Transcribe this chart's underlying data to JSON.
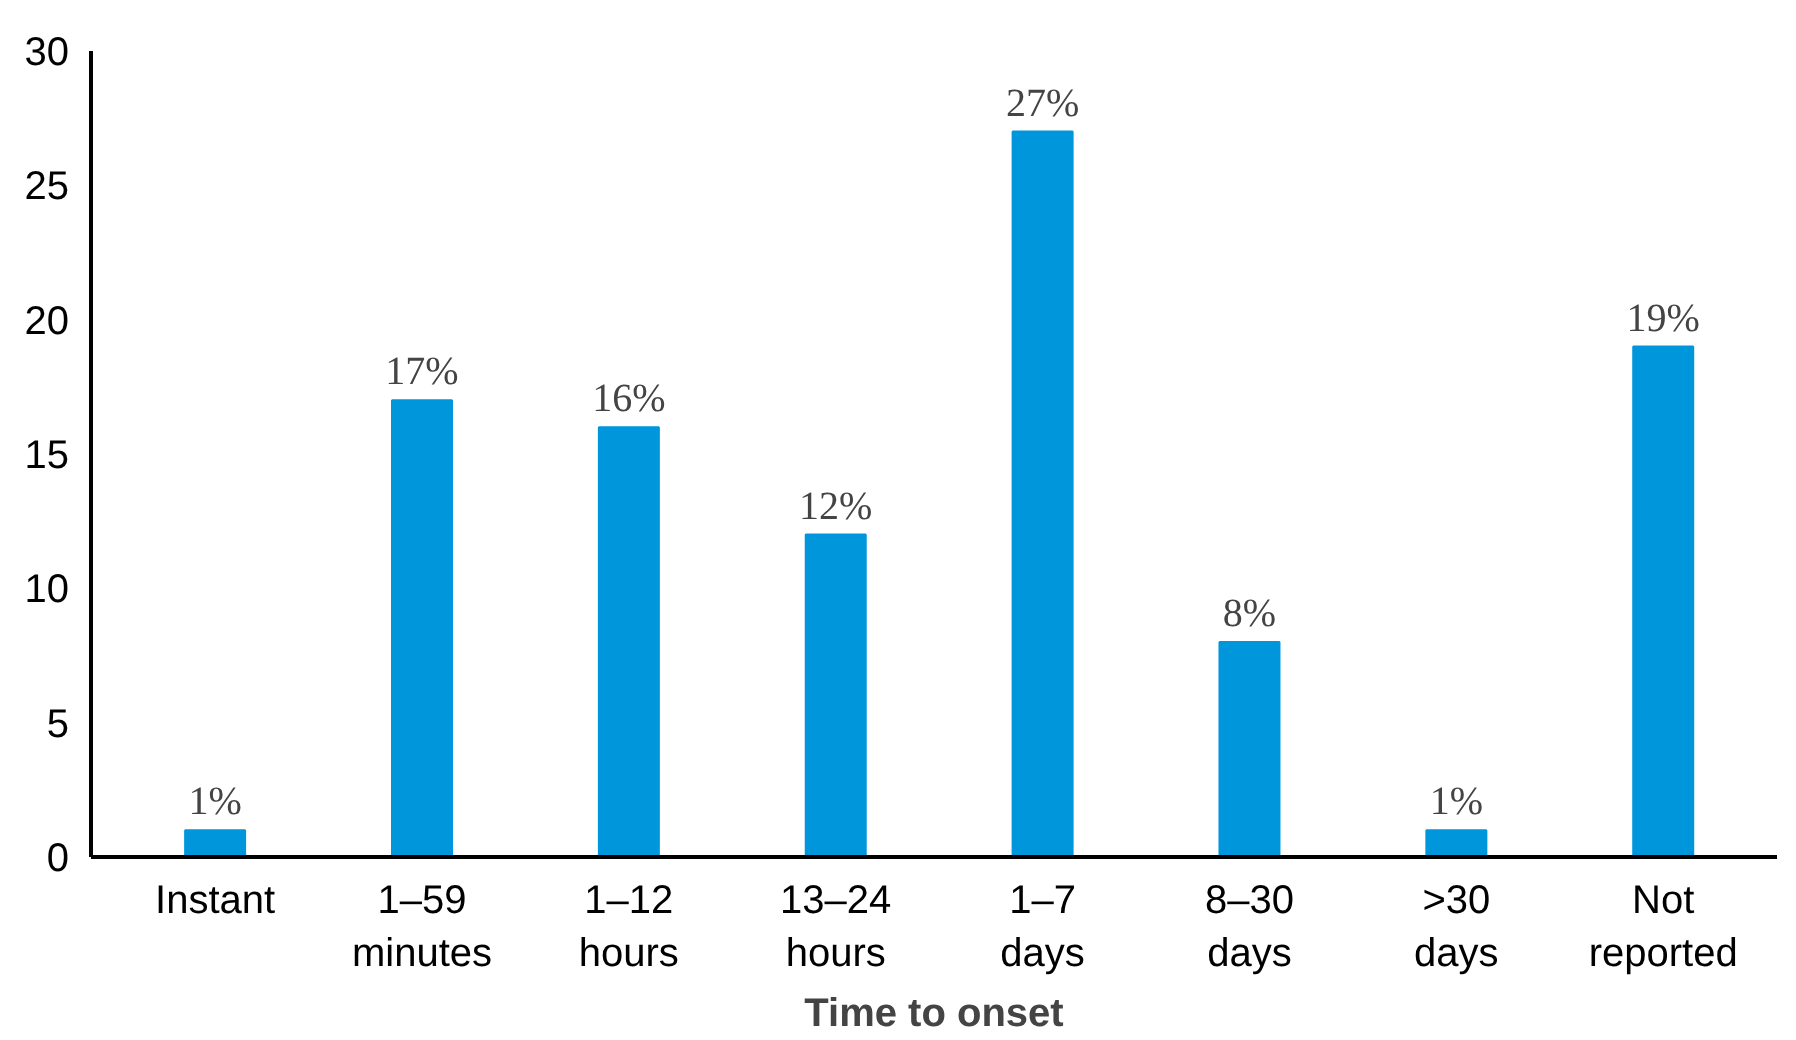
{
  "chart_data": {
    "type": "bar",
    "xlabel": "Time to onset",
    "categories": [
      "Instant",
      "1–59\nminutes",
      "1–12\nhours",
      "13–24\nhours",
      "1–7\ndays",
      "8–30\ndays",
      ">30\ndays",
      "Not\nreported"
    ],
    "values": [
      1,
      17,
      16,
      12,
      27,
      8,
      1,
      19
    ],
    "value_labels": [
      "1%",
      "17%",
      "16%",
      "12%",
      "27%",
      "8%",
      "1%",
      "19%"
    ],
    "color": "#0096dc",
    "ylim": [
      0,
      30
    ],
    "yticks": [
      0,
      5,
      10,
      15,
      20,
      25,
      30
    ],
    "grid": false
  }
}
